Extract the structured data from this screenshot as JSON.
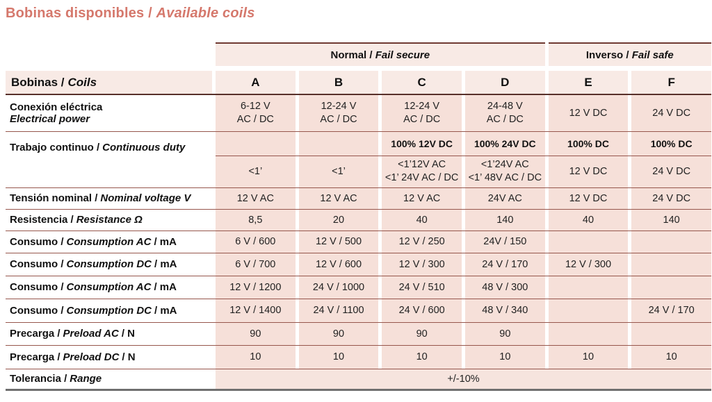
{
  "title": {
    "es": "Bobinas disponibles /",
    "en": "Available coils"
  },
  "groups": {
    "normal": {
      "es": "Normal /",
      "en": "Fail secure"
    },
    "inverso": {
      "es": "Inverso /",
      "en": "Fail safe"
    }
  },
  "header": {
    "corner_es": "Bobinas /",
    "corner_en": "Coils",
    "columns": [
      "A",
      "B",
      "C",
      "D",
      "E",
      "F"
    ]
  },
  "rows": {
    "conexion": {
      "label_es": "Conexión eléctrica",
      "label_en": "Electrical power",
      "cells": [
        "6-12 V\nAC / DC",
        "12-24 V\nAC / DC",
        "12-24 V\nAC / DC",
        "24-48 V\nAC / DC",
        "12 V DC",
        "24 V DC"
      ]
    },
    "trabajo": {
      "label_es": "Trabajo continuo /",
      "label_en": "Continuous duty",
      "duty_cells": [
        "",
        "",
        "100% 12V DC",
        "100% 24V DC",
        "100% DC",
        "100% DC"
      ],
      "time_cells": [
        "<1’",
        "<1’",
        "<1’12V AC\n<1’ 24V AC / DC",
        "<1’24V AC\n<1’ 48V AC / DC",
        "12 V DC",
        "24 V DC"
      ]
    },
    "tension": {
      "label_es": "Tensión nominal /",
      "label_en": "Nominal voltage V",
      "cells": [
        "12 V AC",
        "12 V AC",
        "12 V AC",
        "24V AC",
        "12 V DC",
        "24 V DC"
      ]
    },
    "resistencia": {
      "label_es": "Resistencia /",
      "label_en": "Resistance Ω",
      "cells": [
        "8,5",
        "20",
        "40",
        "140",
        "40",
        "140"
      ]
    },
    "consumo_ac_1": {
      "label_es": "Consumo /",
      "label_en": "Consumption AC",
      "label_unit": "/ mA",
      "cells": [
        "6 V / 600",
        "12 V / 500",
        "12 V / 250",
        "24V / 150",
        "",
        ""
      ]
    },
    "consumo_dc_1": {
      "label_es": "Consumo /",
      "label_en": "Consumption DC",
      "label_unit": "/ mA",
      "cells": [
        "6 V / 700",
        "12 V / 600",
        "12 V / 300",
        "24 V / 170",
        "12 V / 300",
        ""
      ]
    },
    "consumo_ac_2": {
      "label_es": "Consumo /",
      "label_en": "Consumption AC",
      "label_unit": "/ mA",
      "cells": [
        "12 V / 1200",
        "24 V / 1000",
        "24 V / 510",
        "48 V / 300",
        "",
        ""
      ]
    },
    "consumo_dc_2": {
      "label_es": "Consumo /",
      "label_en": "Consumption DC",
      "label_unit": "/ mA",
      "cells": [
        "12 V / 1400",
        "24 V / 1100",
        "24 V / 600",
        "48 V / 340",
        "",
        "24 V / 170"
      ]
    },
    "precarga_ac": {
      "label_es": "Precarga /",
      "label_en": "Preload AC",
      "label_unit": "/ N",
      "cells": [
        "90",
        "90",
        "90",
        "90",
        "",
        ""
      ]
    },
    "precarga_dc": {
      "label_es": "Precarga /",
      "label_en": "Preload DC",
      "label_unit": "/ N",
      "cells": [
        "10",
        "10",
        "10",
        "10",
        "10",
        "10"
      ]
    },
    "tolerancia": {
      "label_es": "Tolerancia /",
      "label_en": "Range",
      "value": "+/-10%"
    }
  }
}
